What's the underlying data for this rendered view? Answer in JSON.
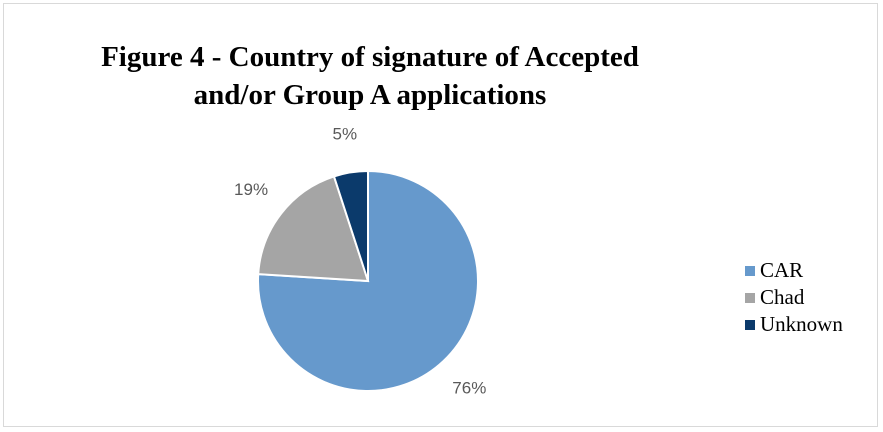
{
  "chart_data": {
    "type": "pie",
    "title": "Figure 4 - Country of signature of Accepted and/or Group A applications",
    "categories": [
      "CAR",
      "Chad",
      "Unknown"
    ],
    "values": [
      76,
      19,
      5
    ],
    "value_labels": [
      "76%",
      "19%",
      "5%"
    ],
    "colors": [
      "#6699cc",
      "#a5a5a5",
      "#0b3a6b"
    ],
    "legend": "right"
  }
}
